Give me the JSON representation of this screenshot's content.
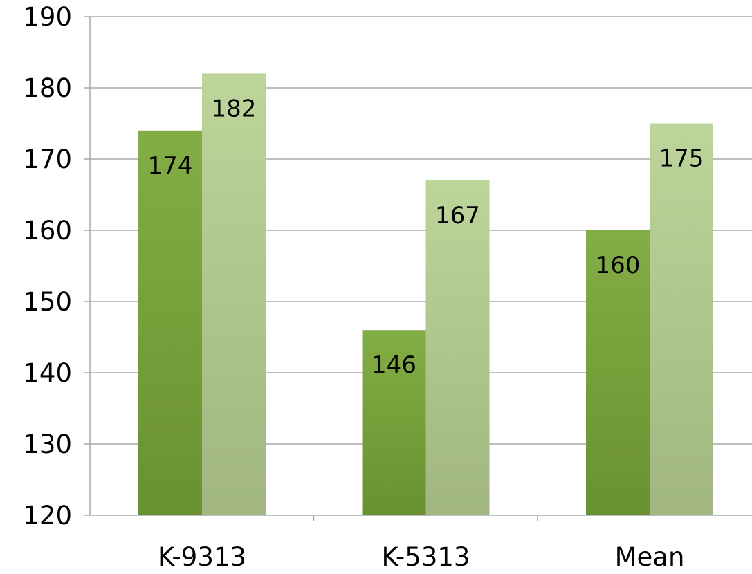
{
  "chart_data": {
    "type": "bar",
    "title": "",
    "xlabel": "",
    "ylabel": "",
    "categories": [
      "K-9313",
      "K-5313",
      "Mean"
    ],
    "series": [
      {
        "values": [
          174,
          146,
          160
        ],
        "color": "#77a03a"
      },
      {
        "values": [
          182,
          167,
          175
        ],
        "color": "#b3cd8f"
      }
    ],
    "ylim": [
      120,
      190
    ],
    "ytick_step": 10,
    "yticks": [
      "120",
      "130",
      "140",
      "150",
      "160",
      "170",
      "180",
      "190"
    ],
    "data_labels": [
      [
        "174",
        "146",
        "160"
      ],
      [
        "182",
        "167",
        "175"
      ]
    ],
    "grid": true,
    "legend": "none"
  }
}
